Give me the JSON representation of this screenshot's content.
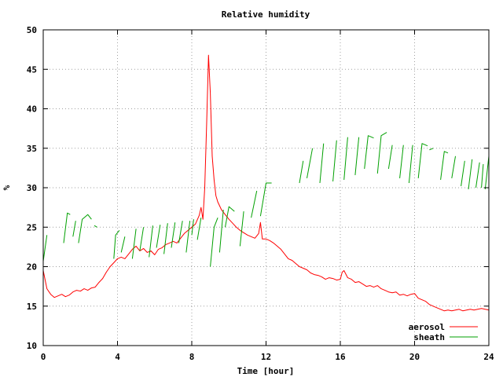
{
  "chart_data": {
    "type": "line",
    "title": "Relative humidity",
    "xlabel": "Time [hour]",
    "ylabel": "%",
    "xlim": [
      0,
      24
    ],
    "ylim": [
      10,
      50
    ],
    "xticks": [
      0,
      4,
      8,
      12,
      16,
      20,
      24
    ],
    "yticks": [
      10,
      15,
      20,
      25,
      30,
      35,
      40,
      45,
      50
    ],
    "xtick_labels": [
      "0",
      "4",
      "8",
      "12",
      "16",
      "20",
      "24"
    ],
    "ytick_labels": [
      "10",
      "15",
      "20",
      "25",
      "30",
      "35",
      "40",
      "45",
      "50"
    ],
    "grid": true,
    "legend_position": "bottom-right",
    "series": [
      {
        "name": "aerosol",
        "color": "#ff0000",
        "style": "line",
        "points": [
          [
            0.0,
            19.5
          ],
          [
            0.2,
            17.2
          ],
          [
            0.4,
            16.5
          ],
          [
            0.6,
            16.1
          ],
          [
            0.8,
            16.3
          ],
          [
            1.0,
            16.5
          ],
          [
            1.2,
            16.2
          ],
          [
            1.4,
            16.4
          ],
          [
            1.6,
            16.8
          ],
          [
            1.8,
            17.0
          ],
          [
            2.0,
            16.9
          ],
          [
            2.2,
            17.2
          ],
          [
            2.4,
            17.0
          ],
          [
            2.6,
            17.3
          ],
          [
            2.8,
            17.4
          ],
          [
            3.0,
            18.0
          ],
          [
            3.2,
            18.5
          ],
          [
            3.4,
            19.3
          ],
          [
            3.6,
            20.0
          ],
          [
            3.8,
            20.5
          ],
          [
            4.0,
            21.0
          ],
          [
            4.2,
            21.2
          ],
          [
            4.4,
            21.0
          ],
          [
            4.6,
            21.6
          ],
          [
            4.8,
            22.2
          ],
          [
            5.0,
            22.6
          ],
          [
            5.2,
            22.0
          ],
          [
            5.4,
            22.3
          ],
          [
            5.6,
            21.8
          ],
          [
            5.8,
            22.0
          ],
          [
            6.0,
            21.5
          ],
          [
            6.2,
            22.2
          ],
          [
            6.4,
            22.4
          ],
          [
            6.6,
            22.8
          ],
          [
            6.8,
            23.0
          ],
          [
            7.0,
            23.2
          ],
          [
            7.2,
            23.0
          ],
          [
            7.4,
            23.6
          ],
          [
            7.6,
            24.2
          ],
          [
            7.8,
            24.6
          ],
          [
            8.0,
            25.0
          ],
          [
            8.2,
            25.4
          ],
          [
            8.4,
            26.5
          ],
          [
            8.5,
            27.5
          ],
          [
            8.6,
            26.0
          ],
          [
            8.7,
            30.0
          ],
          [
            8.8,
            38.0
          ],
          [
            8.9,
            46.8
          ],
          [
            9.0,
            42.0
          ],
          [
            9.1,
            34.0
          ],
          [
            9.2,
            31.0
          ],
          [
            9.3,
            29.0
          ],
          [
            9.4,
            28.2
          ],
          [
            9.6,
            27.2
          ],
          [
            9.8,
            26.6
          ],
          [
            10.0,
            26.0
          ],
          [
            10.2,
            25.5
          ],
          [
            10.4,
            25.0
          ],
          [
            10.6,
            24.6
          ],
          [
            10.8,
            24.3
          ],
          [
            11.0,
            24.0
          ],
          [
            11.2,
            23.8
          ],
          [
            11.4,
            23.6
          ],
          [
            11.6,
            24.2
          ],
          [
            11.7,
            25.6
          ],
          [
            11.8,
            23.5
          ],
          [
            12.0,
            23.5
          ],
          [
            12.2,
            23.3
          ],
          [
            12.4,
            23.0
          ],
          [
            12.6,
            22.6
          ],
          [
            12.8,
            22.2
          ],
          [
            13.0,
            21.6
          ],
          [
            13.2,
            21.0
          ],
          [
            13.4,
            20.8
          ],
          [
            13.6,
            20.4
          ],
          [
            13.8,
            20.0
          ],
          [
            14.0,
            19.8
          ],
          [
            14.2,
            19.6
          ],
          [
            14.4,
            19.2
          ],
          [
            14.6,
            19.0
          ],
          [
            14.8,
            18.9
          ],
          [
            15.0,
            18.7
          ],
          [
            15.2,
            18.4
          ],
          [
            15.4,
            18.6
          ],
          [
            15.6,
            18.5
          ],
          [
            15.8,
            18.3
          ],
          [
            16.0,
            18.4
          ],
          [
            16.1,
            19.3
          ],
          [
            16.2,
            19.5
          ],
          [
            16.4,
            18.6
          ],
          [
            16.6,
            18.4
          ],
          [
            16.8,
            18.0
          ],
          [
            17.0,
            18.1
          ],
          [
            17.2,
            17.8
          ],
          [
            17.4,
            17.5
          ],
          [
            17.6,
            17.6
          ],
          [
            17.8,
            17.4
          ],
          [
            18.0,
            17.6
          ],
          [
            18.2,
            17.2
          ],
          [
            18.4,
            17.0
          ],
          [
            18.6,
            16.8
          ],
          [
            18.8,
            16.7
          ],
          [
            19.0,
            16.8
          ],
          [
            19.2,
            16.4
          ],
          [
            19.4,
            16.5
          ],
          [
            19.6,
            16.3
          ],
          [
            19.8,
            16.5
          ],
          [
            20.0,
            16.6
          ],
          [
            20.2,
            16.0
          ],
          [
            20.4,
            15.8
          ],
          [
            20.6,
            15.6
          ],
          [
            20.8,
            15.2
          ],
          [
            21.0,
            15.0
          ],
          [
            21.2,
            14.8
          ],
          [
            21.4,
            14.6
          ],
          [
            21.6,
            14.4
          ],
          [
            21.8,
            14.5
          ],
          [
            22.0,
            14.4
          ],
          [
            22.2,
            14.5
          ],
          [
            22.4,
            14.6
          ],
          [
            22.6,
            14.4
          ],
          [
            22.8,
            14.5
          ],
          [
            23.0,
            14.6
          ],
          [
            23.2,
            14.5
          ],
          [
            23.4,
            14.6
          ],
          [
            23.6,
            14.7
          ],
          [
            23.8,
            14.6
          ],
          [
            24.0,
            14.5
          ]
        ]
      },
      {
        "name": "sheath",
        "color": "#00a000",
        "style": "sawtooth-segments",
        "segments": [
          [
            [
              0.0,
              20.7
            ],
            [
              0.2,
              24.0
            ]
          ],
          [
            [
              1.1,
              23.0
            ],
            [
              1.3,
              26.8
            ],
            [
              1.45,
              26.6
            ]
          ],
          [
            [
              1.6,
              23.8
            ],
            [
              1.75,
              25.8
            ]
          ],
          [
            [
              1.9,
              23.0
            ],
            [
              2.1,
              26.0
            ],
            [
              2.4,
              26.6
            ],
            [
              2.6,
              26.0
            ]
          ],
          [
            [
              2.75,
              25.2
            ],
            [
              2.9,
              25.0
            ]
          ],
          [
            [
              3.8,
              21.0
            ],
            [
              3.9,
              24.0
            ],
            [
              4.1,
              24.6
            ]
          ],
          [
            [
              4.2,
              21.8
            ],
            [
              4.4,
              23.8
            ]
          ],
          [
            [
              4.8,
              21.0
            ],
            [
              5.0,
              24.8
            ]
          ],
          [
            [
              5.2,
              22.0
            ],
            [
              5.4,
              25.0
            ]
          ],
          [
            [
              5.7,
              21.2
            ],
            [
              5.9,
              25.2
            ]
          ],
          [
            [
              6.1,
              22.4
            ],
            [
              6.3,
              25.3
            ]
          ],
          [
            [
              6.5,
              21.6
            ],
            [
              6.7,
              25.5
            ]
          ],
          [
            [
              6.9,
              22.4
            ],
            [
              7.1,
              25.6
            ]
          ],
          [
            [
              7.3,
              23.0
            ],
            [
              7.5,
              25.8
            ]
          ],
          [
            [
              7.7,
              21.8
            ],
            [
              7.9,
              25.8
            ]
          ],
          [
            [
              8.0,
              24.0
            ],
            [
              8.1,
              26.0
            ]
          ],
          [
            [
              8.3,
              23.4
            ],
            [
              8.5,
              26.2
            ]
          ],
          [
            [
              9.0,
              20.0
            ],
            [
              9.2,
              25.0
            ],
            [
              9.4,
              26.2
            ]
          ],
          [
            [
              9.5,
              21.8
            ],
            [
              9.7,
              27.2
            ]
          ],
          [
            [
              9.8,
              25.0
            ],
            [
              10.0,
              27.6
            ],
            [
              10.3,
              27.0
            ]
          ],
          [
            [
              10.6,
              22.6
            ],
            [
              10.8,
              27.0
            ]
          ],
          [
            [
              11.2,
              26.2
            ],
            [
              11.5,
              29.6
            ]
          ],
          [
            [
              11.7,
              26.4
            ],
            [
              12.0,
              30.6
            ],
            [
              12.3,
              30.6
            ]
          ],
          [
            [
              13.8,
              30.6
            ],
            [
              14.0,
              33.4
            ]
          ],
          [
            [
              14.2,
              31.2
            ],
            [
              14.5,
              35.0
            ]
          ],
          [
            [
              14.9,
              30.6
            ],
            [
              15.1,
              35.6
            ]
          ],
          [
            [
              15.6,
              30.8
            ],
            [
              15.8,
              36.0
            ]
          ],
          [
            [
              16.2,
              31.0
            ],
            [
              16.4,
              36.4
            ]
          ],
          [
            [
              16.8,
              31.6
            ],
            [
              17.0,
              36.4
            ]
          ],
          [
            [
              17.3,
              32.4
            ],
            [
              17.5,
              36.6
            ],
            [
              17.8,
              36.3
            ]
          ],
          [
            [
              18.0,
              31.8
            ],
            [
              18.2,
              36.6
            ],
            [
              18.5,
              37.0
            ]
          ],
          [
            [
              18.6,
              32.4
            ],
            [
              18.8,
              35.4
            ]
          ],
          [
            [
              19.2,
              31.2
            ],
            [
              19.4,
              35.4
            ]
          ],
          [
            [
              19.7,
              30.6
            ],
            [
              19.9,
              35.4
            ]
          ],
          [
            [
              20.2,
              31.2
            ],
            [
              20.4,
              35.6
            ],
            [
              20.7,
              35.3
            ]
          ],
          [
            [
              20.8,
              34.8
            ],
            [
              21.0,
              35.0
            ]
          ],
          [
            [
              21.4,
              31.0
            ],
            [
              21.6,
              34.6
            ],
            [
              21.8,
              34.4
            ]
          ],
          [
            [
              22.0,
              31.2
            ],
            [
              22.2,
              34.0
            ]
          ],
          [
            [
              22.5,
              30.2
            ],
            [
              22.7,
              33.4
            ]
          ],
          [
            [
              22.9,
              29.8
            ],
            [
              23.1,
              33.6
            ]
          ],
          [
            [
              23.3,
              30.0
            ],
            [
              23.5,
              33.2
            ]
          ],
          [
            [
              23.6,
              30.0
            ],
            [
              23.7,
              33.0
            ]
          ],
          [
            [
              23.8,
              29.8
            ],
            [
              24.0,
              34.0
            ]
          ]
        ]
      }
    ]
  }
}
